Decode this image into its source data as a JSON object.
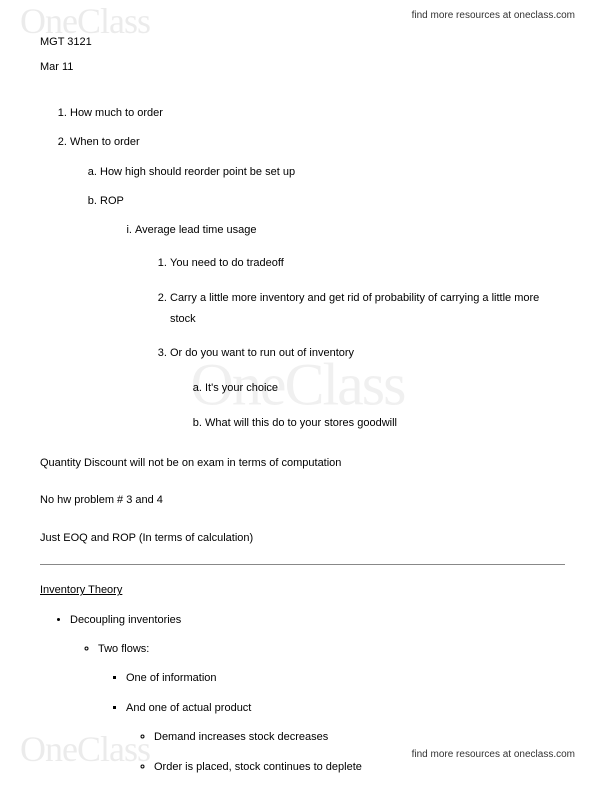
{
  "brand": "OneClass",
  "header_link": "find more resources at oneclass.com",
  "footer_link": "find more resources at oneclass.com",
  "course": "MGT 3121",
  "date": "Mar 11",
  "outline": {
    "item1": "How much to order",
    "item2": "When to order",
    "item2a": "How high should reorder point be set up",
    "item2b": "ROP",
    "item2b_i": "Average lead time usage",
    "item2b_i_1": "You need to do tradeoff",
    "item2b_i_2": "Carry a little more inventory and get rid of probability of carrying a little more stock",
    "item2b_i_3": "Or do you want to run out of inventory",
    "item2b_i_3a": "It's your choice",
    "item2b_i_3b": "What will this do to your stores goodwill"
  },
  "notes": {
    "p1": "Quantity Discount will not be on exam in terms of computation",
    "p2": "No hw problem # 3 and 4",
    "p3": "Just EOQ and ROP (In terms of calculation)"
  },
  "section": {
    "title": "Inventory Theory",
    "b1": "Decoupling inventories",
    "b1_1": "Two flows:",
    "b1_1_1": "One of information",
    "b1_1_2": "And one of actual product",
    "b1_1_2_1": "Demand increases stock decreases",
    "b1_1_2_2": "Order is placed, stock continues to deplete"
  },
  "colors": {
    "text": "#000000",
    "background": "#ffffff",
    "watermark": "rgba(0,0,0,0.07)",
    "rule": "#888888"
  }
}
